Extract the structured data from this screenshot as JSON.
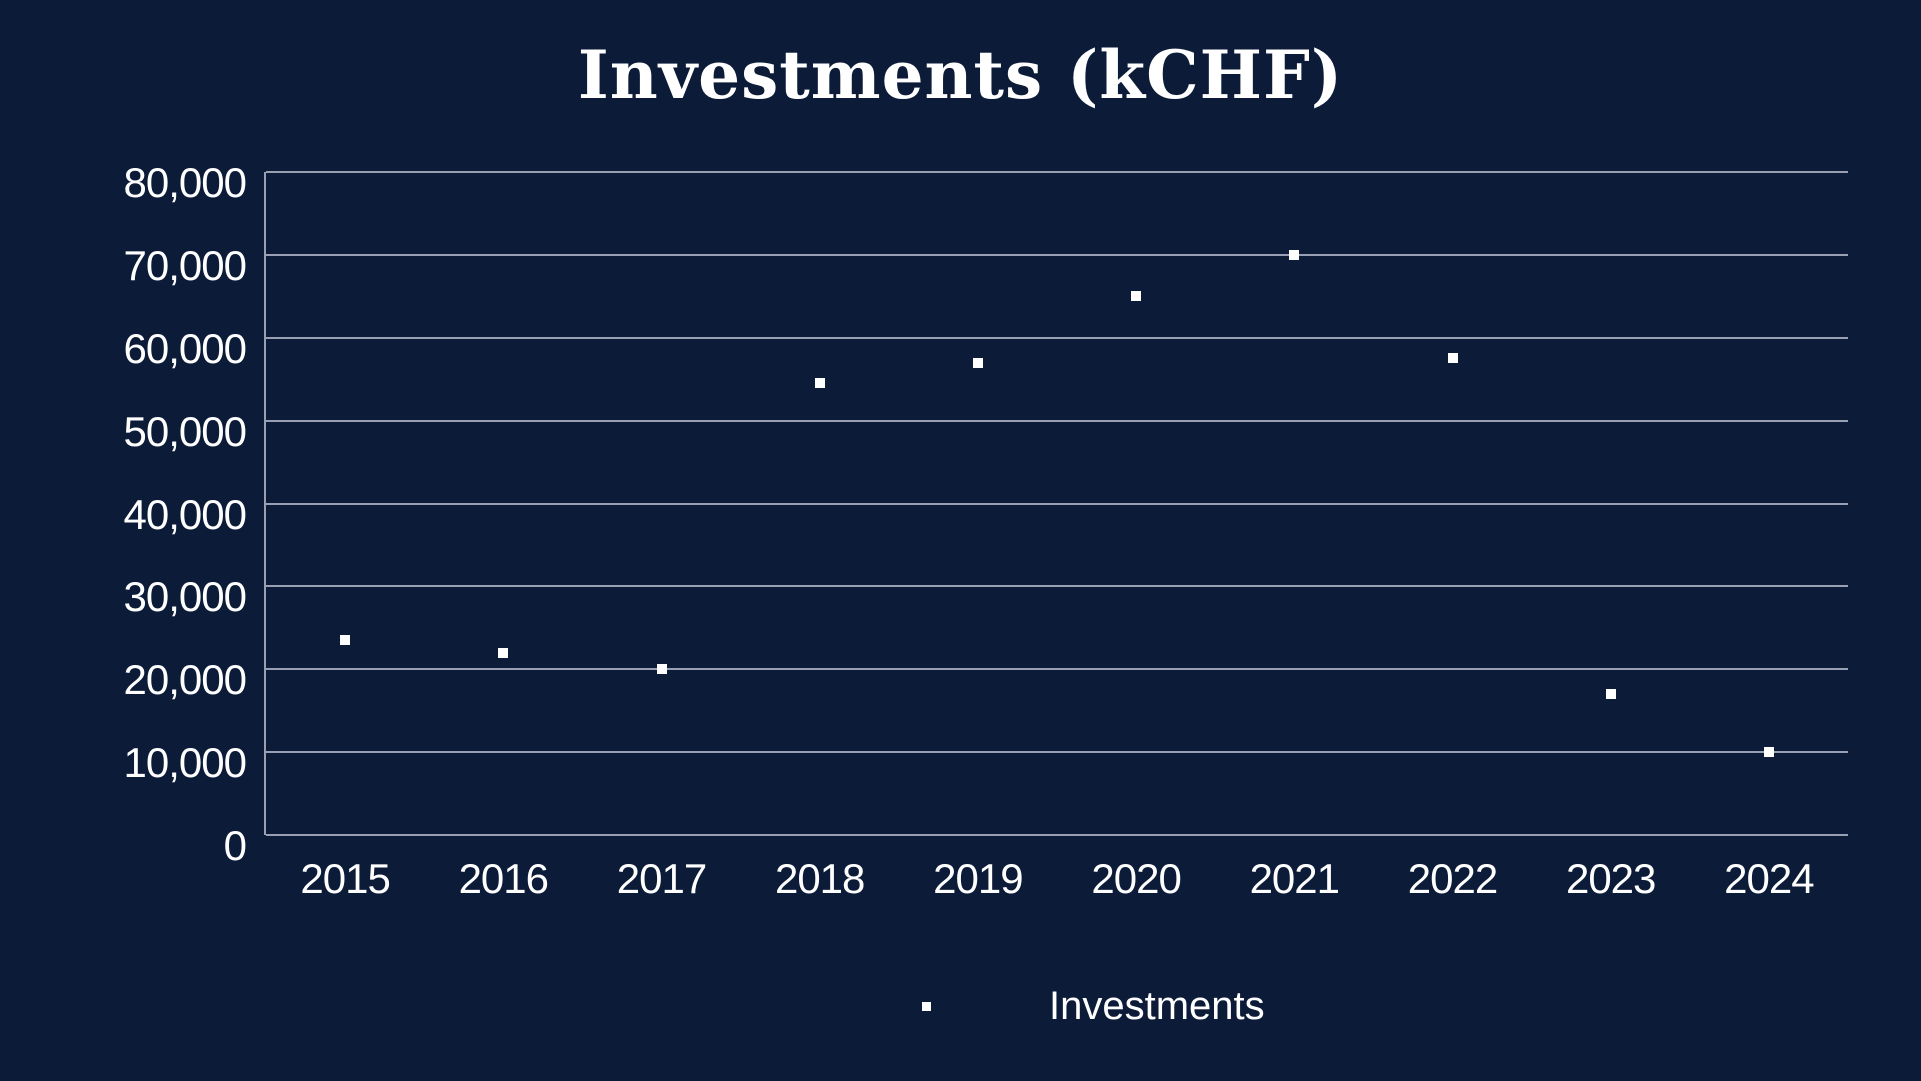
{
  "page_title": "Investments (kCHF)",
  "colors": {
    "background": "#0b1b38",
    "text": "#ffffff",
    "gridline": "#9aa0b4",
    "axis_line": "#9aa0b4",
    "point": "#ffffff"
  },
  "legend": {
    "marker_icon": "square-marker",
    "label": "Investments"
  },
  "chart_data": {
    "type": "scatter",
    "title": "Investments (kCHF)",
    "x": [
      "2015",
      "2016",
      "2017",
      "2018",
      "2019",
      "2020",
      "2021",
      "2022",
      "2023",
      "2024"
    ],
    "series": [
      {
        "name": "Investments",
        "marker": "square",
        "color": "#ffffff",
        "values": [
          23500,
          22000,
          20000,
          54500,
          57000,
          65000,
          70000,
          57500,
          17000,
          10000
        ]
      }
    ],
    "xlabel": "",
    "ylabel": "",
    "ylim": [
      0,
      80000
    ],
    "ytick_interval": 10000,
    "ytick_labels": [
      "0",
      "10,000",
      "20,000",
      "30,000",
      "40,000",
      "50,000",
      "60,000",
      "70,000",
      "80,000"
    ],
    "grid": "horizontal-only",
    "legend_position": "bottom-center"
  }
}
